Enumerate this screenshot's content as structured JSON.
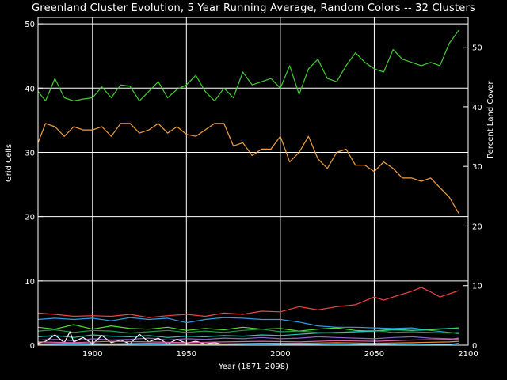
{
  "chart_data": {
    "type": "line",
    "title": "Greenland Cluster Evolution, 5 Year Running Average, Random Colors -- 32 Clusters",
    "xlabel": "Year (1871–2098)",
    "ylabel": "Grid Cells",
    "ylabel_right": "Percent Land Cover",
    "xlim": [
      1871,
      2100
    ],
    "ylim": [
      0,
      51
    ],
    "ylim_right": [
      0,
      55
    ],
    "xticks": [
      1900,
      1950,
      2000,
      2050,
      2100
    ],
    "yticks": [
      0,
      10,
      20,
      30,
      40,
      50
    ],
    "yticks_right": [
      0,
      10,
      20,
      30,
      40,
      50
    ],
    "grid": true,
    "legend": "none",
    "colors": {
      "background": "#000000",
      "axes": "#ffffff",
      "grid": "#ffffff"
    },
    "series": [
      {
        "color": "#44cc33",
        "x": [
          1871,
          1875,
          1880,
          1885,
          1890,
          1895,
          1900,
          1905,
          1910,
          1915,
          1920,
          1925,
          1930,
          1935,
          1940,
          1945,
          1950,
          1955,
          1960,
          1965,
          1970,
          1975,
          1980,
          1985,
          1990,
          1995,
          2000,
          2005,
          2010,
          2015,
          2020,
          2025,
          2030,
          2035,
          2040,
          2045,
          2050,
          2055,
          2060,
          2065,
          2070,
          2075,
          2080,
          2085,
          2090,
          2095
        ],
        "y": [
          39.5,
          38,
          41.5,
          38.5,
          38,
          38.3,
          38.5,
          40.2,
          38.5,
          40.5,
          40.3,
          38,
          39.5,
          41,
          38.5,
          39.8,
          40.5,
          42,
          39.5,
          38,
          40,
          38.5,
          42.5,
          40.5,
          41,
          41.5,
          40,
          43.5,
          39,
          43,
          44.5,
          41.5,
          41,
          43.5,
          45.5,
          44,
          43,
          42.5,
          46,
          44.5,
          44,
          43.5,
          44,
          43.5,
          47,
          49
        ]
      },
      {
        "color": "#f0a040",
        "x": [
          1871,
          1875,
          1880,
          1885,
          1890,
          1895,
          1900,
          1905,
          1910,
          1915,
          1920,
          1925,
          1930,
          1935,
          1940,
          1945,
          1950,
          1955,
          1960,
          1965,
          1970,
          1975,
          1980,
          1985,
          1990,
          1995,
          2000,
          2005,
          2010,
          2015,
          2020,
          2025,
          2030,
          2035,
          2040,
          2045,
          2050,
          2055,
          2060,
          2065,
          2070,
          2075,
          2080,
          2085,
          2090,
          2095
        ],
        "y": [
          31.5,
          34.5,
          34,
          32.5,
          34,
          33.5,
          33.5,
          34,
          32.5,
          34.5,
          34.5,
          33,
          33.5,
          34.5,
          33,
          34,
          32.8,
          32.5,
          33.5,
          34.5,
          34.5,
          31,
          31.5,
          29.5,
          30.5,
          30.5,
          32.5,
          28.5,
          30,
          32.5,
          29,
          27.5,
          30,
          30.5,
          28,
          28,
          27,
          28.5,
          27.5,
          26,
          26,
          25.5,
          26,
          24.5,
          23,
          20.5
        ]
      },
      {
        "color": "#ee4444",
        "x": [
          1871,
          1880,
          1890,
          1900,
          1910,
          1920,
          1930,
          1940,
          1950,
          1960,
          1970,
          1980,
          1990,
          2000,
          2010,
          2020,
          2030,
          2040,
          2050,
          2055,
          2060,
          2070,
          2075,
          2080,
          2085,
          2090,
          2095
        ],
        "y": [
          5,
          4.8,
          4.5,
          4.6,
          4.5,
          4.8,
          4.3,
          4.6,
          4.8,
          4.5,
          5,
          4.8,
          5.3,
          5.2,
          6,
          5.5,
          6,
          6.3,
          7.5,
          7,
          7.5,
          8.4,
          9,
          8.3,
          7.5,
          8,
          8.5
        ]
      },
      {
        "color": "#3399dd",
        "x": [
          1871,
          1880,
          1890,
          1900,
          1910,
          1920,
          1930,
          1940,
          1950,
          1960,
          1970,
          1980,
          1990,
          2000,
          2010,
          2020,
          2030,
          2040,
          2050,
          2060,
          2070,
          2080,
          2090,
          2095
        ],
        "y": [
          4,
          4.2,
          4,
          4.2,
          3.8,
          4.3,
          4,
          4.2,
          3.5,
          4,
          4.3,
          4.2,
          4,
          4,
          3.6,
          3,
          2.8,
          2.8,
          2.7,
          2.6,
          2.7,
          2.3,
          2,
          1.8
        ]
      },
      {
        "color": "#55dd33",
        "x": [
          1871,
          1880,
          1890,
          1900,
          1910,
          1920,
          1930,
          1940,
          1950,
          1960,
          1970,
          1980,
          1990,
          2000,
          2010,
          2020,
          2030,
          2040,
          2050,
          2060,
          2070,
          2080,
          2090,
          2095
        ],
        "y": [
          2.8,
          2.5,
          3.2,
          2.5,
          3,
          2.6,
          2.5,
          2.8,
          2.3,
          2.6,
          2.4,
          2.8,
          2.5,
          2.6,
          2.2,
          2.5,
          2.7,
          2.3,
          2.2,
          2.5,
          2.3,
          2.4,
          2.6,
          2.7
        ]
      },
      {
        "color": "#229944",
        "x": [
          1871,
          1880,
          1890,
          1900,
          1910,
          1920,
          1930,
          1940,
          1950,
          1960,
          1970,
          1980,
          1990,
          2000,
          2010,
          2020,
          2030,
          2040,
          2050,
          2060,
          2070,
          2080,
          2090,
          2095
        ],
        "y": [
          2.2,
          2.4,
          2,
          2.3,
          2.2,
          1.9,
          2.1,
          2.3,
          2,
          2.2,
          2,
          2.3,
          2.5,
          2.1,
          2.2,
          2,
          1.9,
          2.1,
          2.3,
          2,
          2.1,
          2,
          1.9,
          2
        ]
      },
      {
        "color": "#22ccbb",
        "x": [
          1871,
          1880,
          1890,
          1900,
          1910,
          1920,
          1930,
          1940,
          1950,
          1960,
          1970,
          1980,
          1990,
          2000,
          2010,
          2020,
          2030,
          2040,
          2050,
          2060,
          2070,
          2080,
          2090,
          2095
        ],
        "y": [
          1.3,
          1.5,
          1.2,
          1.6,
          1.4,
          1.3,
          1.5,
          1.2,
          1.4,
          1.3,
          1.5,
          1.4,
          1.6,
          1.5,
          1.7,
          1.9,
          2,
          2.1,
          2.2,
          2.4,
          2.3,
          2.5,
          2.6,
          2.5
        ]
      },
      {
        "color": "#8866cc",
        "x": [
          1871,
          1880,
          1890,
          1900,
          1910,
          1920,
          1930,
          1940,
          1950,
          1960,
          1970,
          1980,
          1990,
          2000,
          2010,
          2020,
          2030,
          2040,
          2050,
          2060,
          2070,
          2080,
          2090,
          2095
        ],
        "y": [
          0.8,
          0.9,
          0.7,
          1,
          0.8,
          0.9,
          1.1,
          0.8,
          1,
          0.9,
          1.1,
          1,
          1.2,
          1,
          1.1,
          1.3,
          1.2,
          1.1,
          1,
          1.2,
          1.3,
          1.1,
          1,
          0.9
        ]
      },
      {
        "color": "#ffffff",
        "x": [
          1871,
          1875,
          1880,
          1885,
          1888,
          1890,
          1895,
          1900,
          1905,
          1910,
          1915,
          1920,
          1925,
          1930,
          1935,
          1940,
          1945,
          1950,
          1955,
          1960,
          1965,
          1970
        ],
        "y": [
          0.3,
          0.6,
          1.6,
          0.4,
          2.1,
          0.5,
          1.2,
          0.2,
          1.5,
          0.4,
          0.8,
          0.2,
          1.7,
          0.5,
          1.1,
          0.2,
          0.9,
          0.3,
          0.6,
          0.2,
          0.4,
          0.1
        ]
      },
      {
        "color": "#dd66aa",
        "x": [
          1871,
          1890,
          1910,
          1930,
          1950,
          1970,
          1990,
          2010,
          2030,
          2050,
          2070,
          2090,
          2095
        ],
        "y": [
          0.5,
          0.4,
          0.6,
          0.5,
          0.4,
          0.5,
          0.6,
          0.5,
          0.7,
          0.6,
          0.8,
          0.9,
          1.1
        ]
      },
      {
        "color": "#ee8833",
        "x": [
          1871,
          1890,
          1910,
          1930,
          1950,
          1970,
          1990,
          2010,
          2030,
          2050,
          2070,
          2090,
          2095
        ],
        "y": [
          0.2,
          0.3,
          0.2,
          0.3,
          0.2,
          0.2,
          0.3,
          0.3,
          0.4,
          0.3,
          0.4,
          0.5,
          0.6
        ]
      },
      {
        "color": "#33aadd",
        "x": [
          1871,
          1890,
          1910,
          1930,
          1950,
          1970,
          1990,
          2010,
          2030,
          2050,
          2070,
          2090,
          2095
        ],
        "y": [
          0.1,
          0.2,
          0.1,
          0.2,
          0.1,
          0.1,
          0.2,
          0.1,
          0.2,
          0.1,
          0.2,
          0.1,
          0.3
        ]
      }
    ]
  }
}
